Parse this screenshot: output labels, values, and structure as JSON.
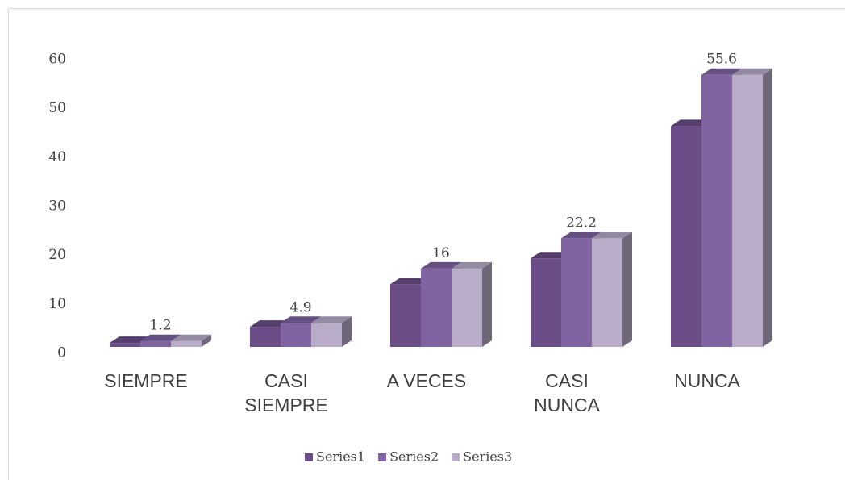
{
  "chart_data": {
    "type": "bar3d",
    "categories": [
      "SIEMPRE",
      "CASI SIEMPRE",
      "A VECES",
      "CASI NUNCA",
      "NUNCA"
    ],
    "series": [
      {
        "name": "Series1",
        "color": "#6a4c87",
        "values": [
          0.8,
          4.1,
          12.8,
          18.1,
          45.1
        ]
      },
      {
        "name": "Series2",
        "color": "#8064a2",
        "values": [
          1.2,
          4.9,
          16,
          22.2,
          55.6
        ],
        "data_labels": true
      },
      {
        "name": "Series3",
        "color": "#b9acc9",
        "values": [
          1.2,
          4.9,
          16,
          22.2,
          55.6
        ]
      }
    ],
    "ylim": [
      0,
      60
    ],
    "yticks": [
      0,
      10,
      20,
      30,
      40,
      50,
      60
    ],
    "grid": false,
    "legend": "bottom"
  }
}
